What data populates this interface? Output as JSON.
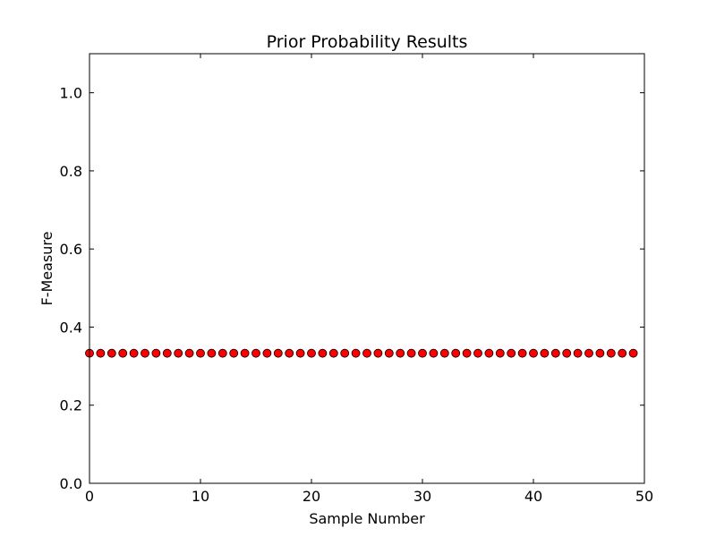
{
  "chart_data": {
    "type": "scatter",
    "title": "Prior Probability Results",
    "xlabel": "Sample Number",
    "ylabel": "F-Measure",
    "xlim": [
      0,
      50
    ],
    "ylim": [
      0,
      1.1
    ],
    "xticks": [
      "0",
      "10",
      "20",
      "30",
      "40",
      "50"
    ],
    "yticks": [
      "0.0",
      "0.2",
      "0.4",
      "0.6",
      "0.8",
      "1.0"
    ],
    "grid": false,
    "marker_color": "#ff0000",
    "marker_edge": "#000000",
    "x": [
      0,
      1,
      2,
      3,
      4,
      5,
      6,
      7,
      8,
      9,
      10,
      11,
      12,
      13,
      14,
      15,
      16,
      17,
      18,
      19,
      20,
      21,
      22,
      23,
      24,
      25,
      26,
      27,
      28,
      29,
      30,
      31,
      32,
      33,
      34,
      35,
      36,
      37,
      38,
      39,
      40,
      41,
      42,
      43,
      44,
      45,
      46,
      47,
      48,
      49
    ],
    "y": [
      0.333,
      0.333,
      0.333,
      0.333,
      0.333,
      0.333,
      0.333,
      0.333,
      0.333,
      0.333,
      0.333,
      0.333,
      0.333,
      0.333,
      0.333,
      0.333,
      0.333,
      0.333,
      0.333,
      0.333,
      0.333,
      0.333,
      0.333,
      0.333,
      0.333,
      0.333,
      0.333,
      0.333,
      0.333,
      0.333,
      0.333,
      0.333,
      0.333,
      0.333,
      0.333,
      0.333,
      0.333,
      0.333,
      0.333,
      0.333,
      0.333,
      0.333,
      0.333,
      0.333,
      0.333,
      0.333,
      0.333,
      0.333,
      0.333,
      0.333
    ]
  }
}
